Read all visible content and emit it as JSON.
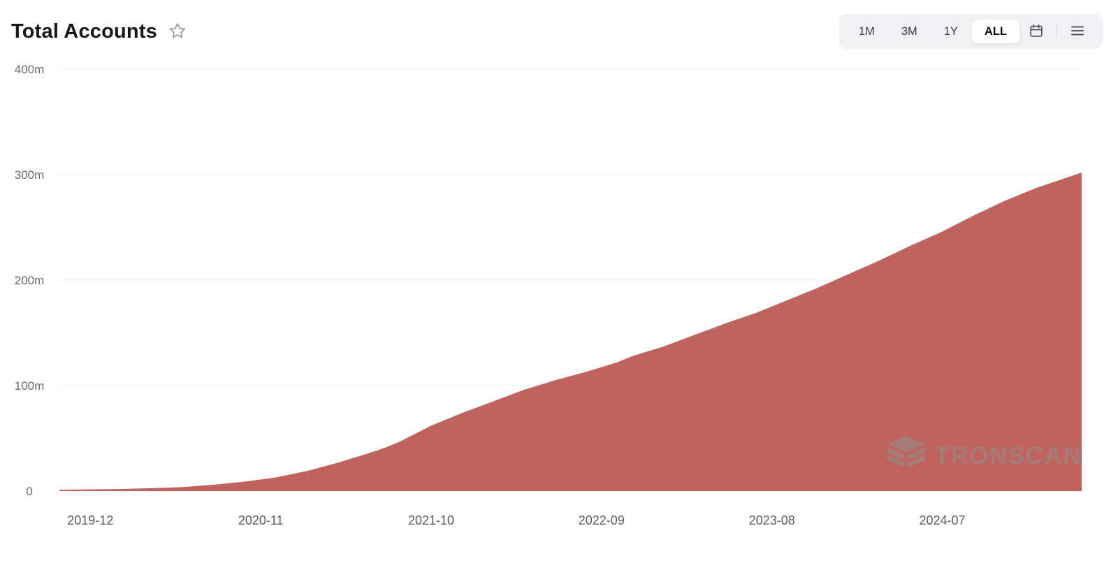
{
  "header": {
    "title": "Total Accounts",
    "favorite_icon": "star-outline-icon",
    "ranges": [
      {
        "label": "1M",
        "active": false
      },
      {
        "label": "3M",
        "active": false
      },
      {
        "label": "1Y",
        "active": false
      },
      {
        "label": "ALL",
        "active": true
      }
    ],
    "calendar_icon": "calendar-icon",
    "menu_icon": "hamburger-menu-icon"
  },
  "watermark": {
    "text": "TRONSCAN",
    "icon": "tronscan-cube-logo"
  },
  "chart_data": {
    "type": "area",
    "title": "Total Accounts",
    "series_name": "Total Accounts",
    "unit": "millions of accounts",
    "color": "#c0635e",
    "grid": true,
    "legend": false,
    "ylim": [
      0,
      400
    ],
    "yticks": [
      0,
      100,
      200,
      300,
      400
    ],
    "ytick_labels": [
      "0",
      "100m",
      "200m",
      "300m",
      "400m"
    ],
    "xtick_labels": [
      "2019-12",
      "2020-11",
      "2021-10",
      "2022-09",
      "2023-08",
      "2024-07"
    ],
    "x": [
      "2019-10",
      "2019-12",
      "2020-02",
      "2020-04",
      "2020-06",
      "2020-08",
      "2020-10",
      "2020-12",
      "2021-02",
      "2021-04",
      "2021-06",
      "2021-07",
      "2021-08",
      "2021-10",
      "2021-12",
      "2022-02",
      "2022-04",
      "2022-06",
      "2022-08",
      "2022-10",
      "2022-11",
      "2023-01",
      "2023-03",
      "2023-05",
      "2023-07",
      "2023-09",
      "2023-11",
      "2024-01",
      "2024-03",
      "2024-05",
      "2024-07",
      "2024-09",
      "2024-11",
      "2025-01",
      "2025-03",
      "2025-04"
    ],
    "values": [
      1.2,
      1.6,
      2.0,
      2.7,
      3.8,
      6,
      9,
      13,
      19,
      27,
      36,
      41,
      47,
      62,
      74,
      85,
      96,
      105,
      113,
      122,
      128,
      137,
      148,
      159,
      169,
      181,
      193,
      206,
      219,
      233,
      246,
      261,
      275,
      287,
      297,
      302
    ]
  }
}
